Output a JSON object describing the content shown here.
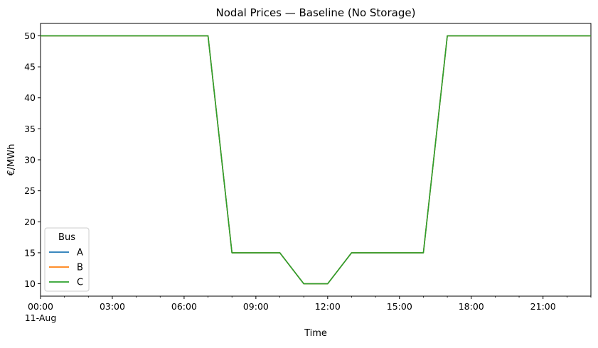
{
  "chart_data": {
    "type": "line",
    "title": "Nodal Prices — Baseline (No Storage)",
    "xlabel": "Time",
    "ylabel": "€/MWh",
    "x_tick_labels": [
      "00:00",
      "03:00",
      "06:00",
      "09:00",
      "12:00",
      "15:00",
      "18:00",
      "21:00"
    ],
    "x_date_label": "11-Aug",
    "y_ticks": [
      10,
      15,
      20,
      25,
      30,
      35,
      40,
      45,
      50
    ],
    "xlim": [
      "2023-08-11T00:00",
      "2023-08-11T23:00"
    ],
    "ylim": [
      8,
      52
    ],
    "grid": false,
    "legend": {
      "title": "Bus",
      "location": "lower-left"
    },
    "x": [
      "00:00",
      "01:00",
      "02:00",
      "03:00",
      "04:00",
      "05:00",
      "06:00",
      "07:00",
      "08:00",
      "09:00",
      "10:00",
      "11:00",
      "12:00",
      "13:00",
      "14:00",
      "15:00",
      "16:00",
      "17:00",
      "18:00",
      "19:00",
      "20:00",
      "21:00",
      "22:00",
      "23:00"
    ],
    "series": [
      {
        "name": "A",
        "color": "#1f77b4",
        "values": [
          50,
          50,
          50,
          50,
          50,
          50,
          50,
          50,
          15,
          15,
          15,
          10,
          10,
          15,
          15,
          15,
          15,
          50,
          50,
          50,
          50,
          50,
          50,
          50
        ]
      },
      {
        "name": "B",
        "color": "#ff7f0e",
        "values": [
          50,
          50,
          50,
          50,
          50,
          50,
          50,
          50,
          15,
          15,
          15,
          10,
          10,
          15,
          15,
          15,
          15,
          50,
          50,
          50,
          50,
          50,
          50,
          50
        ]
      },
      {
        "name": "C",
        "color": "#2ca02c",
        "values": [
          50,
          50,
          50,
          50,
          50,
          50,
          50,
          50,
          15,
          15,
          15,
          10,
          10,
          15,
          15,
          15,
          15,
          50,
          50,
          50,
          50,
          50,
          50,
          50
        ]
      }
    ]
  }
}
